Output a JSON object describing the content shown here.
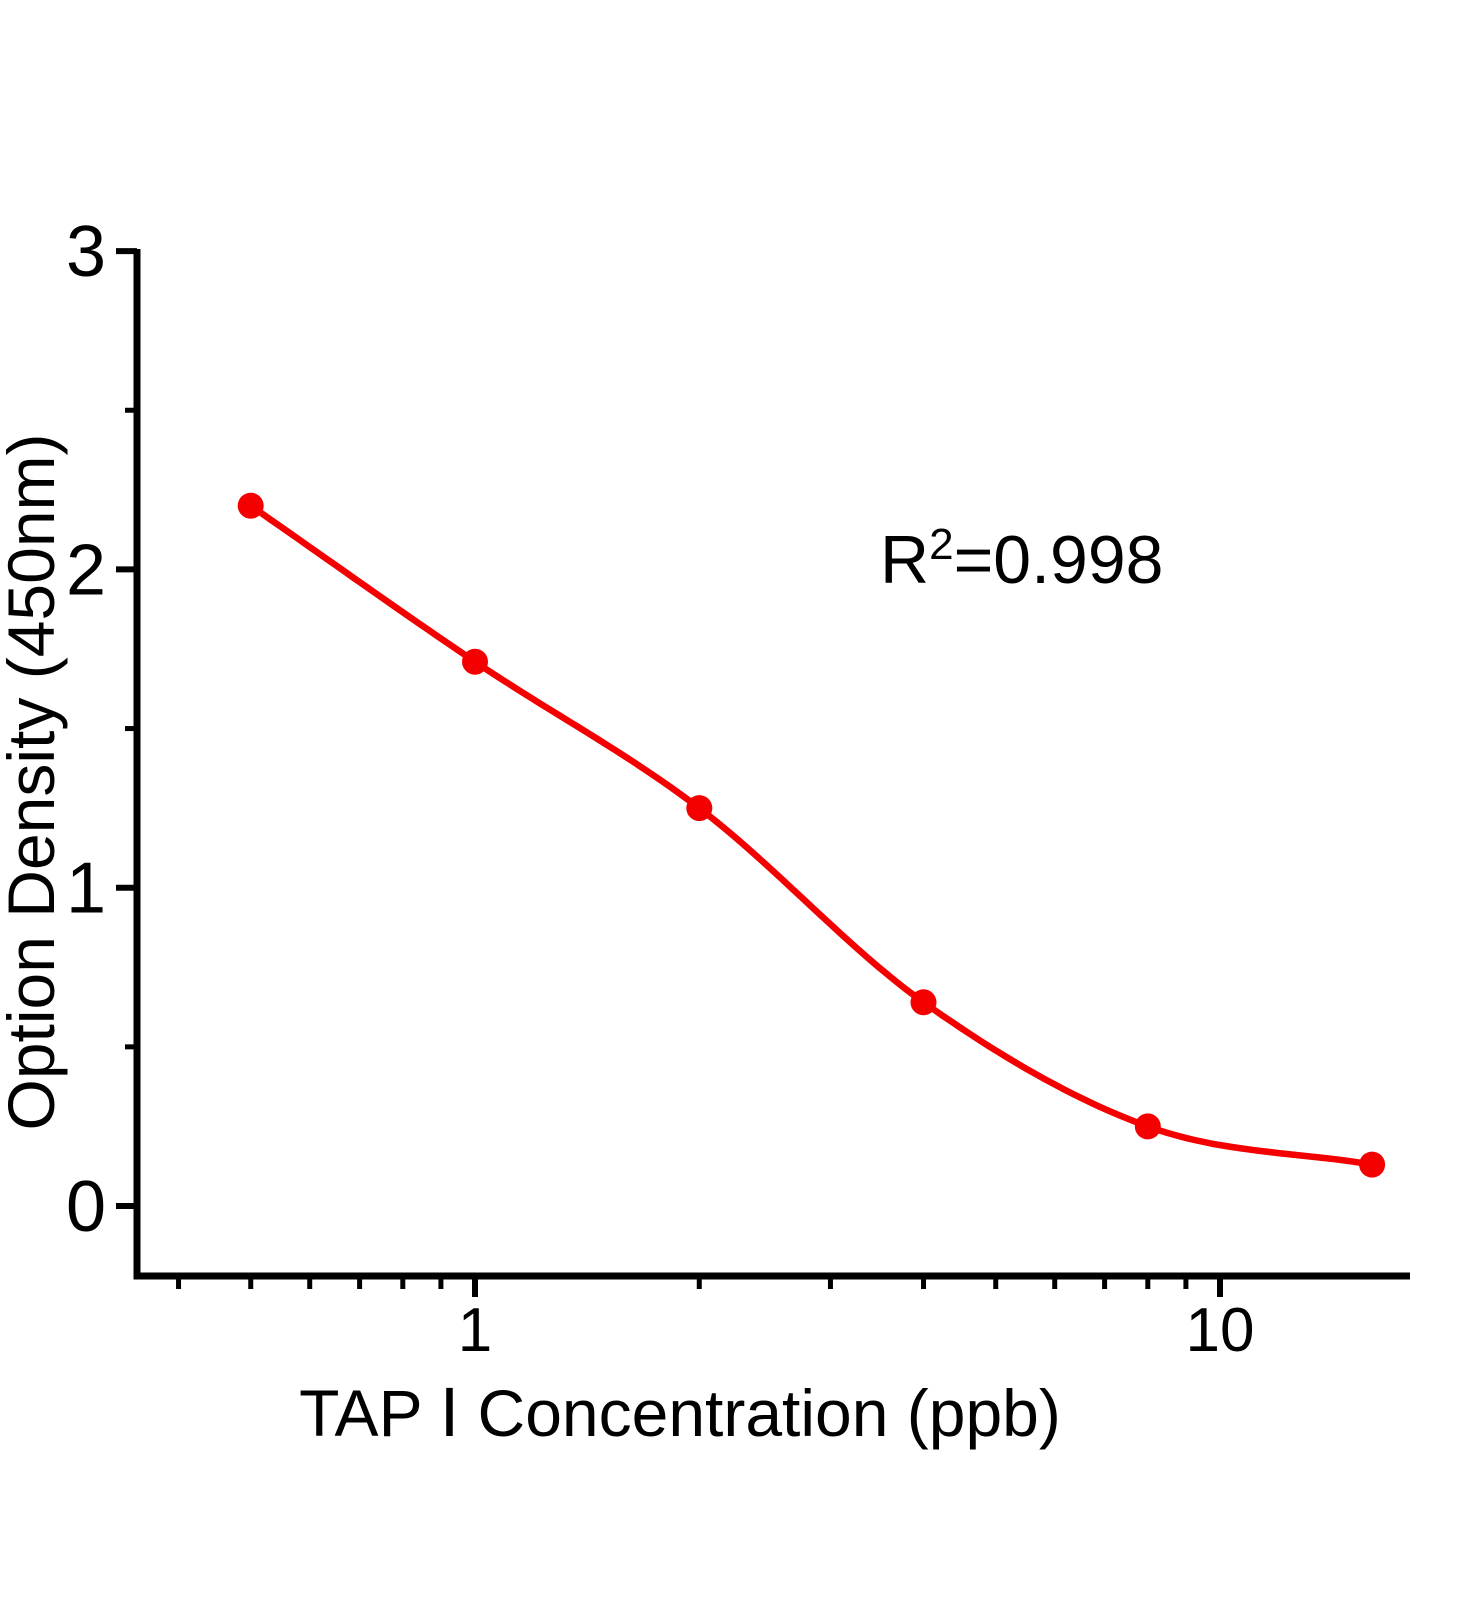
{
  "chart_data": {
    "type": "scatter",
    "title": "",
    "xlabel": "TAP Ⅰ Concentration (ppb)",
    "ylabel": "Option Density (450nm)",
    "x_scale": "log",
    "y_scale": "linear",
    "x": [
      0.5,
      1,
      2,
      4,
      8,
      16
    ],
    "y": [
      2.2,
      1.71,
      1.25,
      0.64,
      0.25,
      0.13
    ],
    "fit_r_squared": "0.998",
    "annotation": {
      "base": "R",
      "sup": "2",
      "rest": "=0.998"
    },
    "x_major_ticks": [
      {
        "v": 1,
        "label": "1"
      },
      {
        "v": 10,
        "label": "10"
      }
    ],
    "x_minor_ticks": [
      0.4,
      0.5,
      0.6,
      0.7,
      0.8,
      0.9,
      2,
      3,
      4,
      5,
      6,
      7,
      8,
      9
    ],
    "y_major_ticks": [
      {
        "v": 3,
        "label": "3"
      },
      {
        "v": 2,
        "label": "2"
      },
      {
        "v": 1,
        "label": "1"
      },
      {
        "v": 0,
        "label": "0"
      }
    ],
    "y_minor_ticks": [
      2.5,
      1.5,
      0.5
    ],
    "xlim": [
      0.35,
      18
    ],
    "ylim": [
      -0.22,
      3
    ],
    "grid": false,
    "legend": null,
    "colors": {
      "points": "#F40000",
      "curve": "#F40000",
      "axis": "#000000",
      "text": "#000000",
      "background": "#FFFFFF"
    }
  }
}
